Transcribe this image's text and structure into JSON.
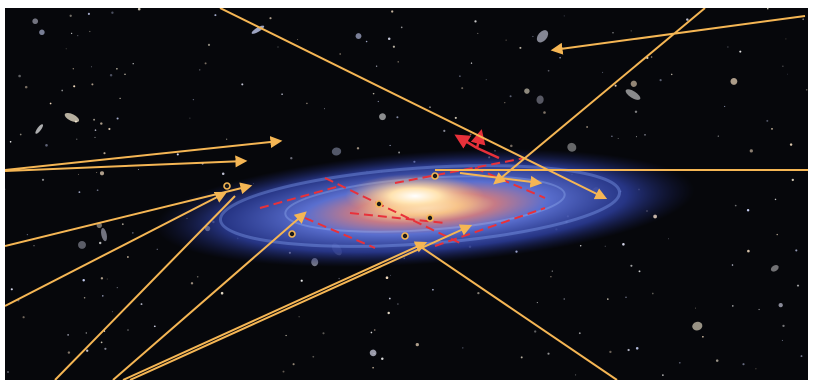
{
  "image": {
    "subject": "galaxy-with-star-trajectories",
    "colors": {
      "background": "#06070b",
      "trajectory": "#f5b654",
      "disk_path": "#e8313a",
      "disk_blue": "#6f8fe8",
      "core": "#fff2cf"
    }
  }
}
